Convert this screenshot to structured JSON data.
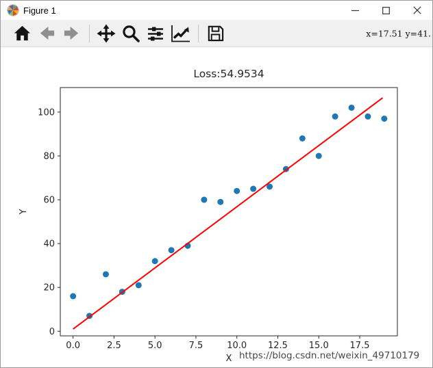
{
  "window": {
    "title": "Figure 1",
    "controls": {
      "minimize": "minimize",
      "maximize": "maximize",
      "close": "close"
    }
  },
  "toolbar": {
    "buttons": [
      {
        "name": "home",
        "enabled": true
      },
      {
        "name": "back",
        "enabled": false
      },
      {
        "name": "forward",
        "enabled": false
      },
      {
        "name": "pan",
        "enabled": true
      },
      {
        "name": "zoom",
        "enabled": true
      },
      {
        "name": "configure-subplots",
        "enabled": true
      },
      {
        "name": "customize",
        "enabled": true
      },
      {
        "name": "save",
        "enabled": true
      }
    ],
    "status": "x=17.51 y=41."
  },
  "chart_data": {
    "type": "scatter",
    "title": "Loss:54.9534",
    "xlabel": "X",
    "ylabel": "Y",
    "xlim": [
      -0.78,
      19.8
    ],
    "ylim": [
      -2.1,
      111.2
    ],
    "xticks": [
      0,
      2.5,
      5,
      7.5,
      10,
      12.5,
      15,
      17.5
    ],
    "xtick_labels": [
      "0.0",
      "2.5",
      "5.0",
      "7.5",
      "10.0",
      "12.5",
      "15.0",
      "17.5"
    ],
    "yticks": [
      0,
      20,
      40,
      60,
      80,
      100
    ],
    "ytick_labels": [
      "0",
      "20",
      "40",
      "60",
      "80",
      "100"
    ],
    "grid": false,
    "legend": null,
    "series": [
      {
        "name": "data-points",
        "kind": "scatter",
        "color": "#1f77b4",
        "x": [
          0,
          1,
          2,
          3,
          4,
          5,
          6,
          7,
          8,
          9,
          10,
          11,
          12,
          13,
          14,
          15,
          16,
          17,
          18,
          19
        ],
        "y": [
          16,
          7,
          26,
          18,
          21,
          32,
          37,
          39,
          60,
          59,
          64,
          65,
          66,
          74,
          88,
          80,
          98,
          102,
          98,
          97
        ]
      },
      {
        "name": "fit-line",
        "kind": "line",
        "color": "#ff0000",
        "x": [
          0,
          18.9
        ],
        "y": [
          1,
          106.5
        ]
      }
    ],
    "watermark": "https://blog.csdn.net/weixin_49710179"
  }
}
